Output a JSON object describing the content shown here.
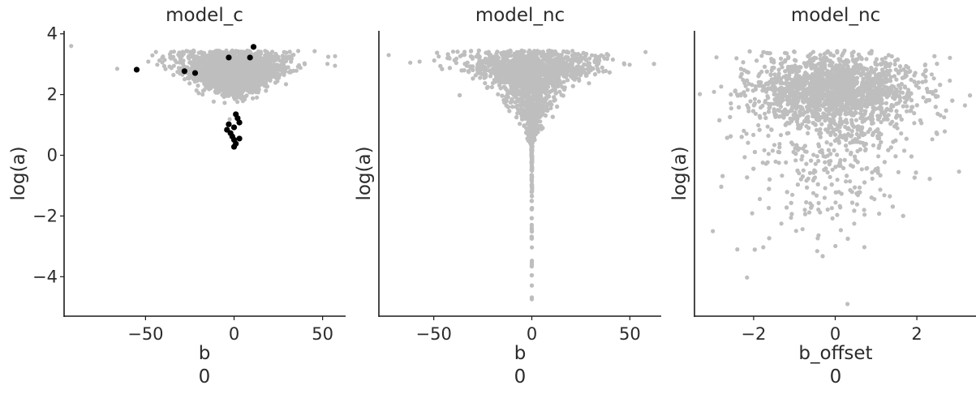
{
  "chart_data": [
    {
      "type": "scatter",
      "title": "model_c",
      "xlabel": "b",
      "xlabel_sub": "0",
      "ylabel": "log(a)",
      "xlim": [
        -96,
        63
      ],
      "ylim": [
        -5.3,
        4.1
      ],
      "xticks": [
        -50,
        0,
        50
      ],
      "yticks": [
        4,
        2,
        0,
        -2,
        -4
      ],
      "grid": false,
      "cloud": {
        "x_spread": 11,
        "y_mode": 2.9,
        "lower_tail": 0.4,
        "right_skew": 1.0
      },
      "divergences": [
        {
          "x": -55,
          "y": 2.82
        },
        {
          "x": -28,
          "y": 2.77
        },
        {
          "x": -22,
          "y": 2.71
        },
        {
          "x": -3,
          "y": 3.22
        },
        {
          "x": 9,
          "y": 3.22
        },
        {
          "x": 11,
          "y": 3.57
        },
        {
          "x": 1,
          "y": 1.35
        },
        {
          "x": 2,
          "y": 1.22
        },
        {
          "x": 3,
          "y": 1.08
        },
        {
          "x": -3,
          "y": 1.02
        },
        {
          "x": 0,
          "y": 0.92
        },
        {
          "x": -4,
          "y": 0.84
        },
        {
          "x": -2,
          "y": 0.73
        },
        {
          "x": -1,
          "y": 0.62
        },
        {
          "x": 0,
          "y": 0.51
        },
        {
          "x": 3,
          "y": 0.55
        },
        {
          "x": 1,
          "y": 0.38
        },
        {
          "x": 0,
          "y": 0.28
        }
      ],
      "outliers": [
        {
          "x": -92,
          "y": 3.6
        },
        {
          "x": -66,
          "y": 2.85
        },
        {
          "x": 57,
          "y": 2.95
        }
      ]
    },
    {
      "type": "scatter",
      "title": "model_nc",
      "xlabel": "b",
      "xlabel_sub": "0",
      "ylabel": "log(a)",
      "xlim": [
        -78,
        66
      ],
      "ylim": [
        -5.3,
        4.1
      ],
      "xticks": [
        -50,
        0,
        50
      ],
      "yticks": [],
      "grid": false,
      "cloud": {
        "x_spread": 13,
        "y_mode": 2.9,
        "lower_tail": 1.6,
        "right_skew": 1.0
      },
      "divergences": [],
      "outliers": [
        {
          "x": -73,
          "y": 3.3
        },
        {
          "x": -62,
          "y": 3.05
        },
        {
          "x": 58,
          "y": 3.4
        }
      ]
    },
    {
      "type": "scatter",
      "title": "model_nc",
      "xlabel": "b_offset",
      "xlabel_sub": "0",
      "ylabel": "log(a)",
      "xlim": [
        -3.45,
        3.45
      ],
      "ylim": [
        -5.3,
        4.1
      ],
      "xticks": [
        -2,
        0,
        2
      ],
      "yticks": [],
      "grid": false,
      "cloud": {
        "x_spread": 1,
        "y_mode": 2.2,
        "lower_tail": 1.3,
        "right_skew": 1.0
      },
      "divergences": [],
      "outliers": [
        {
          "x": -3.0,
          "y": -2.5
        },
        {
          "x": -2.4,
          "y": -3.1
        },
        {
          "x": 0.3,
          "y": -4.9
        }
      ]
    }
  ],
  "colors": {
    "samples": "#bebebe",
    "divergences": "#000000",
    "axis": "#1a1a1a",
    "text": "#2b2b2b"
  }
}
